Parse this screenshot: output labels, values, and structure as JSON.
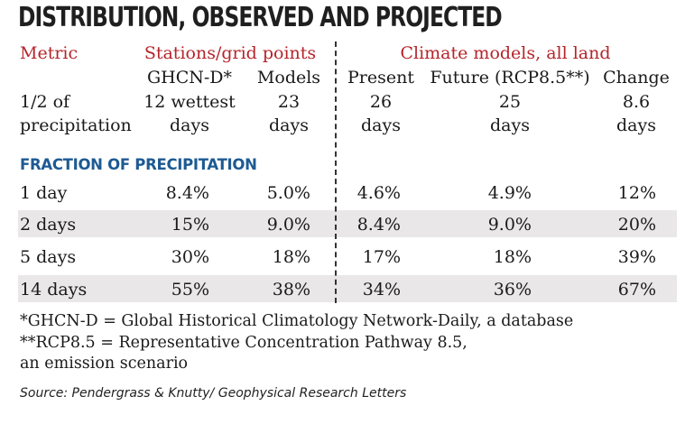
{
  "title": "DISTRIBUTION, OBSERVED AND PROJECTED",
  "headers": {
    "metric": "Metric",
    "stations_group": "Stations/grid points",
    "models_group": "Climate models, all land",
    "ghcn": "GHCN-D*",
    "models": "Models",
    "present": "Present",
    "future": "Future (RCP8.5**)",
    "change": "Change"
  },
  "half_precip_row": {
    "label_line1": "1/2 of",
    "label_line2": "precipitation",
    "ghcn_line1": "12 wettest",
    "ghcn_line2": "days",
    "models_line1": "23",
    "models_line2": "days",
    "present_line1": "26",
    "present_line2": "days",
    "future_line1": "25",
    "future_line2": "days",
    "change_line1": "8.6",
    "change_line2": "days"
  },
  "section_title": "FRACTION OF PRECIPITATION",
  "chart_data": {
    "type": "table",
    "columns": [
      "GHCN-D*",
      "Models",
      "Present",
      "Future (RCP8.5**)",
      "Change"
    ],
    "rows": [
      {
        "label": "1 day",
        "values": [
          "8.4%",
          "5.0%",
          "4.6%",
          "4.9%",
          "12%"
        ]
      },
      {
        "label": "2 days",
        "values": [
          "15%",
          "9.0%",
          "8.4%",
          "9.0%",
          "20%"
        ]
      },
      {
        "label": "5 days",
        "values": [
          "30%",
          "18%",
          "17%",
          "18%",
          "39%"
        ]
      },
      {
        "label": "14 days",
        "values": [
          "55%",
          "38%",
          "34%",
          "36%",
          "67%"
        ]
      }
    ]
  },
  "footnotes": {
    "ghcn_note": "*GHCN-D = Global Historical Climatology Network-Daily, a database",
    "rcp_note_line1": "**RCP8.5 = Representative Concentration Pathway 8.5,",
    "rcp_note_line2": "an emission scenario"
  },
  "source": "Source: Pendergrass & Knutty/ Geophysical Research Letters",
  "colors": {
    "header_red": "#b5242a",
    "section_blue": "#1d5a93",
    "row_shade": "#e9e7e7"
  }
}
